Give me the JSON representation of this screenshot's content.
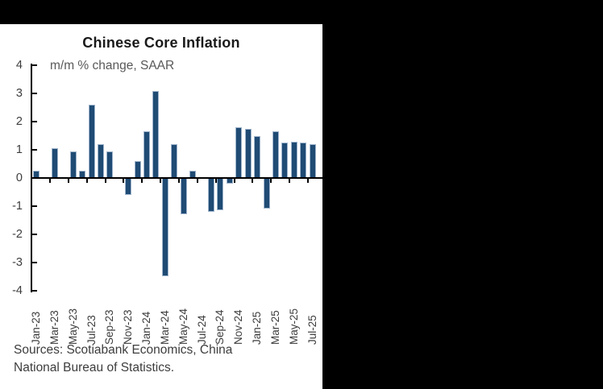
{
  "colors": {
    "background": "#000000",
    "panel": "#ffffff",
    "bar_fill": "#1f4b74",
    "bar_edge": "#9fb4cc",
    "axis": "#000000",
    "title_text": "#1a1a1a",
    "subtitle_text": "#595959",
    "axis_label_text": "#3d3d3d",
    "source_text": "#3d3d3d"
  },
  "chart_data": {
    "type": "bar",
    "title": "Chinese Core Inflation",
    "subtitle": "m/m % change, SAAR",
    "xlabel": "",
    "ylabel": "",
    "ylim": [
      -4,
      4
    ],
    "y_ticks": [
      4,
      3,
      2,
      1,
      0,
      -1,
      -2,
      -3,
      -4
    ],
    "grid": "off",
    "legend": "none",
    "x_label_every": 2,
    "x_tick_labels_shown": [
      "Jan-23",
      "Mar-23",
      "May-23",
      "Jul-23",
      "Sep-23",
      "Nov-23",
      "Jan-24",
      "Mar-24",
      "May-24",
      "Jul-24",
      "Sep-24",
      "Nov-24",
      "Jan-25",
      "Mar-25",
      "May-25",
      "Jul-25"
    ],
    "categories": [
      "Jan-23",
      "Feb-23",
      "Mar-23",
      "Apr-23",
      "May-23",
      "Jun-23",
      "Jul-23",
      "Aug-23",
      "Sep-23",
      "Oct-23",
      "Nov-23",
      "Dec-23",
      "Jan-24",
      "Feb-24",
      "Mar-24",
      "Apr-24",
      "May-24",
      "Jun-24",
      "Jul-24",
      "Aug-24",
      "Sep-24",
      "Oct-24",
      "Nov-24",
      "Dec-24",
      "Jan-25",
      "Feb-25",
      "Mar-25",
      "Apr-25",
      "May-25",
      "Jun-25",
      "Jul-25"
    ],
    "values": [
      0.25,
      0,
      1.05,
      0,
      0.95,
      0.25,
      2.6,
      1.2,
      0.95,
      0,
      -0.6,
      0.6,
      1.65,
      3.1,
      -3.5,
      1.2,
      -1.3,
      0.25,
      0,
      -1.2,
      -1.15,
      -0.2,
      1.8,
      1.75,
      1.5,
      -1.1,
      1.65,
      1.25,
      1.3,
      1.25,
      1.2
    ]
  },
  "source_note": {
    "line1": "Sources: Scotiabank Economics, China",
    "line2": "National Bureau of Statistics."
  }
}
